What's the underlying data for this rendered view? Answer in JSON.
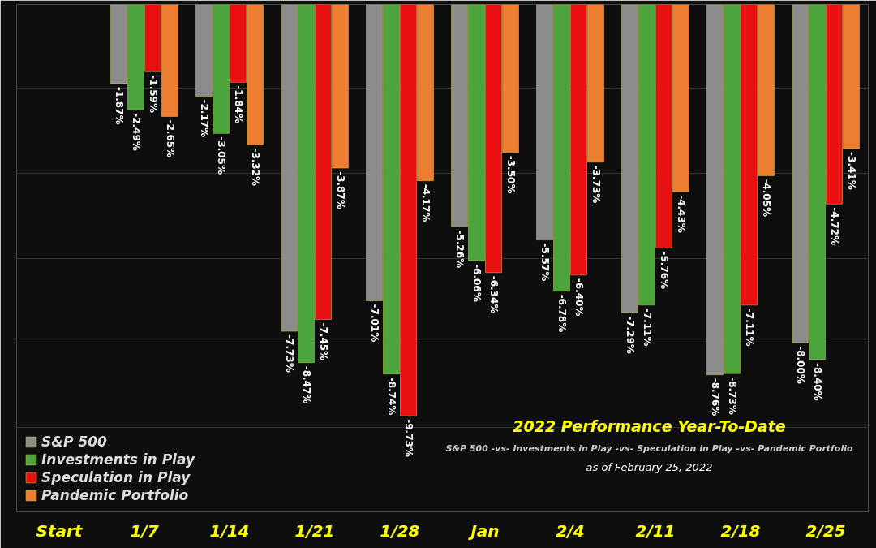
{
  "chart_data": {
    "type": "bar",
    "title": "2022 Performance Year-To-Date",
    "subtitle": "S&P 500 -vs- Investments in Play -vs- Speculation in Play -vs- Pandemic Portfolio",
    "annotations": [
      "as of February 25, 2022"
    ],
    "categories": [
      "Start",
      "1/7",
      "1/14",
      "1/21",
      "1/28",
      "Jan",
      "2/4",
      "2/11",
      "2/18",
      "2/25"
    ],
    "series": [
      {
        "name": "S&P 500",
        "color": "#8c8c8c",
        "values": [
          null,
          -1.87,
          -2.17,
          -7.73,
          -7.01,
          -5.26,
          -5.57,
          -7.29,
          -8.76,
          -8.0
        ],
        "value_labels": [
          null,
          "-1.87%",
          "-2.17%",
          "-7.73%",
          "-7.01%",
          "-5.26%",
          "-5.57%",
          "-7.29%",
          "-8.76%",
          "-8.00%"
        ]
      },
      {
        "name": "Investments in Play",
        "color": "#4ca43c",
        "values": [
          null,
          -2.49,
          -3.05,
          -8.47,
          -8.74,
          -6.06,
          -6.78,
          -7.11,
          -8.73,
          -8.4
        ],
        "value_labels": [
          null,
          "-2.49%",
          "-3.05%",
          "-8.47%",
          "-8.74%",
          "-6.06%",
          "-6.78%",
          "-7.11%",
          "-8.73%",
          "-8.40%"
        ]
      },
      {
        "name": "Speculation in Play",
        "color": "#e81010",
        "values": [
          null,
          -1.59,
          -1.84,
          -7.45,
          -9.73,
          -6.34,
          -6.4,
          -5.76,
          -7.11,
          -4.72
        ],
        "value_labels": [
          null,
          "-1.59%",
          "-1.84%",
          "-7.45%",
          "-9.73%",
          "-6.34%",
          "-6.40%",
          "-5.76%",
          "-7.11%",
          "-4.72%"
        ]
      },
      {
        "name": "Pandemic Portfolio",
        "color": "#ed7d31",
        "values": [
          null,
          -2.65,
          -3.32,
          -3.87,
          -4.17,
          -3.5,
          -3.73,
          -4.43,
          -4.05,
          -3.41
        ],
        "value_labels": [
          null,
          "-2.65%",
          "-3.32%",
          "-3.87%",
          "-4.17%",
          "-3.50%",
          "-3.73%",
          "-4.43%",
          "-4.05%",
          "-3.41%"
        ]
      }
    ],
    "ylim": [
      -12,
      0
    ],
    "yticks": [
      {
        "value": 0,
        "label": null
      },
      {
        "value": -2,
        "label": null
      },
      {
        "value": -4,
        "label": null
      },
      {
        "value": -6,
        "label": null
      },
      {
        "value": -8,
        "label": null
      },
      {
        "value": -10,
        "label": null
      },
      {
        "value": -12,
        "label": null
      }
    ],
    "tick_labels": "x",
    "grid": "y",
    "legend": "bottom left"
  }
}
